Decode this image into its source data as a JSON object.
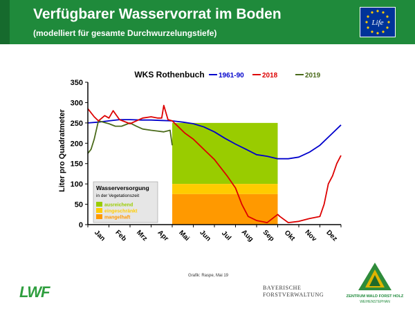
{
  "header": {
    "title": "Verfügbarer Wasservorrat im Boden",
    "subtitle": "(modelliert für gesamte Durchwurzelungstiefe)",
    "eu_logo_text": "Life",
    "bg_color": "#1f8a3b"
  },
  "credit": "Grafik: Raspe, Mai 19",
  "logos": {
    "lwf": "LWF",
    "bayerische_line1": "BAYERISCHE",
    "bayerische_line2": "FORSTVERWALTUNG",
    "zw_line1": "ZENTRUM WALD FORST HOLZ",
    "zw_line2": "WEIHENSTEPHAN"
  },
  "chart_data": {
    "type": "line",
    "title": "WKS Rothenbuch",
    "ylabel": "Liter pro Quadratmeter",
    "xlabel": "",
    "ylim": [
      0,
      350
    ],
    "yticks": [
      0,
      50,
      100,
      150,
      200,
      250,
      300,
      350
    ],
    "x_unit": "month (0 = 1 Jan, 12 = 31 Dec)",
    "xlim": [
      0,
      12
    ],
    "month_labels": [
      "Jan",
      "Feb",
      "Mrz",
      "Apr",
      "Mai",
      "Jun",
      "Jul",
      "Aug",
      "Sep",
      "Okt",
      "Nov",
      "Dez"
    ],
    "series": [
      {
        "name": "1961-90",
        "color": "#0000cc",
        "points": [
          [
            0,
            250
          ],
          [
            0.5,
            252
          ],
          [
            1,
            255
          ],
          [
            1.5,
            258
          ],
          [
            2,
            258
          ],
          [
            2.5,
            257
          ],
          [
            3,
            257
          ],
          [
            3.5,
            256
          ],
          [
            4,
            255
          ],
          [
            4.5,
            252
          ],
          [
            5,
            248
          ],
          [
            5.5,
            240
          ],
          [
            6,
            228
          ],
          [
            6.5,
            212
          ],
          [
            7,
            198
          ],
          [
            7.5,
            185
          ],
          [
            8,
            172
          ],
          [
            8.5,
            168
          ],
          [
            9,
            162
          ],
          [
            9.5,
            162
          ],
          [
            10,
            166
          ],
          [
            10.5,
            178
          ],
          [
            11,
            195
          ],
          [
            11.5,
            220
          ],
          [
            12,
            245
          ]
        ]
      },
      {
        "name": "2018",
        "color": "#dd0000",
        "points": [
          [
            0,
            285
          ],
          [
            0.3,
            265
          ],
          [
            0.5,
            255
          ],
          [
            0.8,
            268
          ],
          [
            1,
            262
          ],
          [
            1.2,
            280
          ],
          [
            1.5,
            258
          ],
          [
            2,
            248
          ],
          [
            2.3,
            255
          ],
          [
            2.6,
            262
          ],
          [
            3,
            265
          ],
          [
            3.3,
            262
          ],
          [
            3.5,
            262
          ],
          [
            3.6,
            293
          ],
          [
            3.8,
            258
          ],
          [
            4,
            255
          ],
          [
            4.3,
            240
          ],
          [
            4.6,
            225
          ],
          [
            5,
            210
          ],
          [
            5.3,
            195
          ],
          [
            5.6,
            180
          ],
          [
            6,
            160
          ],
          [
            6.3,
            140
          ],
          [
            6.6,
            120
          ],
          [
            7,
            90
          ],
          [
            7.3,
            50
          ],
          [
            7.6,
            20
          ],
          [
            8,
            10
          ],
          [
            8.5,
            5
          ],
          [
            9,
            25
          ],
          [
            9.1,
            20
          ],
          [
            9.5,
            5
          ],
          [
            10,
            8
          ],
          [
            10.5,
            15
          ],
          [
            11,
            20
          ],
          [
            11.2,
            50
          ],
          [
            11.4,
            100
          ],
          [
            11.6,
            120
          ],
          [
            11.8,
            150
          ],
          [
            12,
            170
          ]
        ]
      },
      {
        "name": "2019",
        "color": "#4a6a1a",
        "points": [
          [
            0,
            175
          ],
          [
            0.15,
            185
          ],
          [
            0.3,
            210
          ],
          [
            0.5,
            255
          ],
          [
            1,
            248
          ],
          [
            1.3,
            242
          ],
          [
            1.6,
            242
          ],
          [
            2,
            250
          ],
          [
            2.3,
            242
          ],
          [
            2.6,
            235
          ],
          [
            3,
            232
          ],
          [
            3.3,
            230
          ],
          [
            3.6,
            228
          ],
          [
            3.9,
            232
          ],
          [
            4,
            195
          ]
        ]
      }
    ],
    "bands": [
      {
        "name": "ausreichend",
        "color": "#99cc00",
        "from": 100,
        "to": 250
      },
      {
        "name": "eingeschränkt",
        "color": "#ffcc00",
        "from": 75,
        "to": 100
      },
      {
        "name": "mangelhaft",
        "color": "#ff9900",
        "from": 0,
        "to": 75
      }
    ],
    "band_x_range": [
      4,
      9
    ],
    "band_legend_title": "Wasserversorgung",
    "band_legend_subtitle": "in der Vegetationszeit",
    "grid": false,
    "legend_placement": "top-right"
  }
}
